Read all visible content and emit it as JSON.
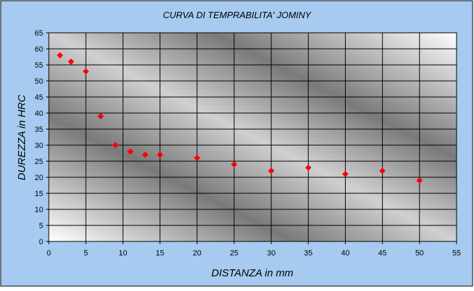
{
  "chart_data": {
    "type": "scatter",
    "title": "CURVA DI TEMPRABILITA' JOMINY",
    "x_label": "DISTANZA in mm",
    "y_label": "DUREZZA in HRC",
    "x": [
      1.5,
      3,
      5,
      7,
      9,
      11,
      13,
      15,
      20,
      25,
      30,
      35,
      40,
      45,
      50
    ],
    "values": [
      58,
      56,
      53,
      39,
      30,
      28,
      27,
      27,
      26,
      24,
      22,
      23,
      21,
      22,
      19
    ],
    "color": "#ff0000",
    "xlim": [
      0,
      55
    ],
    "xticks": [
      0,
      5,
      10,
      15,
      20,
      25,
      30,
      35,
      40,
      45,
      50,
      55
    ],
    "ylim": [
      0,
      65
    ],
    "yticks": [
      0,
      5,
      10,
      15,
      20,
      25,
      30,
      35,
      40,
      45,
      50,
      55,
      60,
      65
    ],
    "grid": true
  }
}
